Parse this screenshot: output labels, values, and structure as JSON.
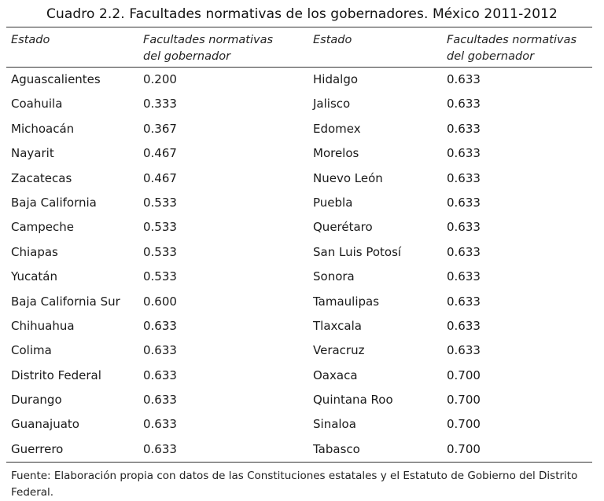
{
  "title": "Cuadro 2.2. Facultades normativas de los gobernadores. México 2011-2012",
  "headers": {
    "col1": "Estado",
    "col2_line1": "Facultades normativas",
    "col2_line2": "del gobernador",
    "col3": "Estado",
    "col4_line1": "Facultades normativas",
    "col4_line2": "del gobernador"
  },
  "rows": [
    {
      "left_state": "Aguascalientes",
      "left_value": "0.200",
      "right_state": "Hidalgo",
      "right_value": "0.633"
    },
    {
      "left_state": "Coahuila",
      "left_value": "0.333",
      "right_state": "Jalisco",
      "right_value": "0.633"
    },
    {
      "left_state": "Michoacán",
      "left_value": "0.367",
      "right_state": "Edomex",
      "right_value": "0.633"
    },
    {
      "left_state": "Nayarit",
      "left_value": "0.467",
      "right_state": "Morelos",
      "right_value": "0.633"
    },
    {
      "left_state": "Zacatecas",
      "left_value": "0.467",
      "right_state": "Nuevo León",
      "right_value": "0.633"
    },
    {
      "left_state": "Baja California",
      "left_value": "0.533",
      "right_state": "Puebla",
      "right_value": "0.633"
    },
    {
      "left_state": "Campeche",
      "left_value": "0.533",
      "right_state": "Querétaro",
      "right_value": "0.633"
    },
    {
      "left_state": "Chiapas",
      "left_value": "0.533",
      "right_state": "San Luis Potosí",
      "right_value": "0.633"
    },
    {
      "left_state": "Yucatán",
      "left_value": "0.533",
      "right_state": "Sonora",
      "right_value": "0.633"
    },
    {
      "left_state": "Baja California Sur",
      "left_value": "0.600",
      "right_state": "Tamaulipas",
      "right_value": "0.633"
    },
    {
      "left_state": "Chihuahua",
      "left_value": "0.633",
      "right_state": "Tlaxcala",
      "right_value": "0.633"
    },
    {
      "left_state": "Colima",
      "left_value": "0.633",
      "right_state": "Veracruz",
      "right_value": "0.633"
    },
    {
      "left_state": "Distrito Federal",
      "left_value": "0.633",
      "right_state": "Oaxaca",
      "right_value": "0.700"
    },
    {
      "left_state": "Durango",
      "left_value": "0.633",
      "right_state": "Quintana Roo",
      "right_value": "0.700"
    },
    {
      "left_state": "Guanajuato",
      "left_value": "0.633",
      "right_state": "Sinaloa",
      "right_value": "0.700"
    },
    {
      "left_state": "Guerrero",
      "left_value": "0.633",
      "right_state": "Tabasco",
      "right_value": "0.700"
    }
  ],
  "source_note": "Fuente: Elaboración propia con datos de las Constituciones estatales y el Estatuto de Gobierno del Distrito Federal."
}
